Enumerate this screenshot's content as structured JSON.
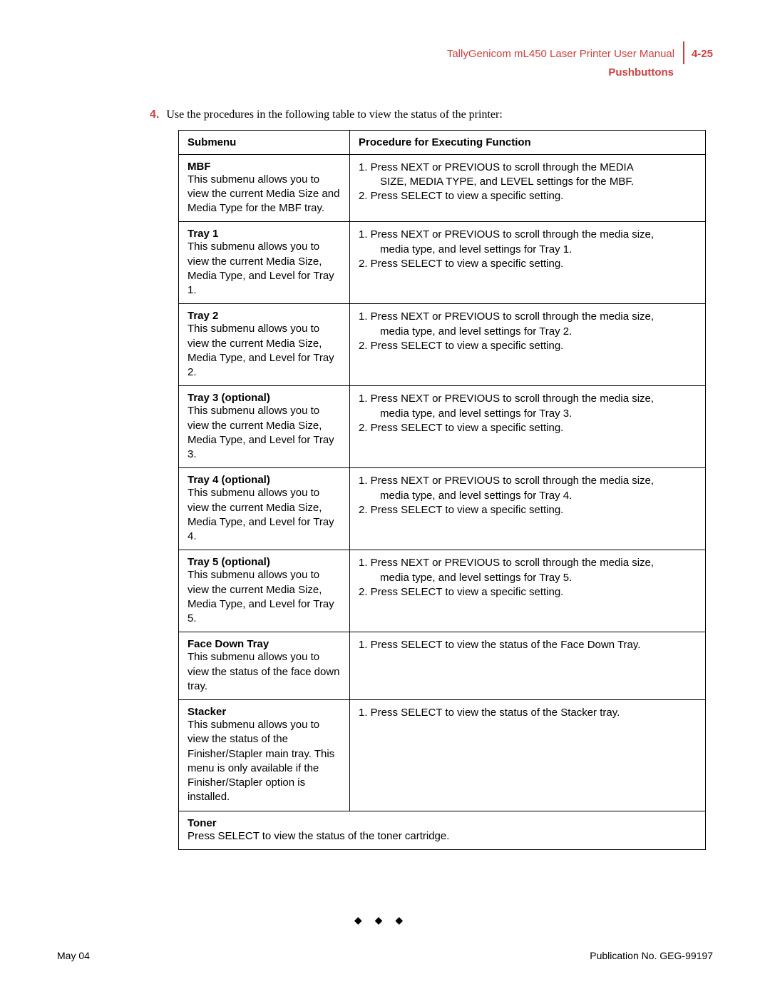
{
  "header": {
    "manual_title": "TallyGenicom mL450 Laser Printer User Manual",
    "page_number": "4-25",
    "section": "Pushbuttons"
  },
  "instruction": {
    "number": "4.",
    "text": "Use the procedures in the following table to view the status of the printer:"
  },
  "table": {
    "headers": {
      "col1": "Submenu",
      "col2": "Procedure for Executing Function"
    },
    "rows": [
      {
        "title": "MBF",
        "desc": "This submenu allows you to view the current Media Size and Media Type for the MBF tray.",
        "proc": [
          "1. Press NEXT or PREVIOUS to scroll through the MEDIA",
          "    SIZE, MEDIA TYPE, and LEVEL settings for the MBF.",
          "2. Press SELECT to view a specific setting."
        ]
      },
      {
        "title": "Tray 1",
        "desc": "This submenu allows you to view the current Media Size, Media Type, and Level for Tray 1.",
        "proc": [
          "1. Press NEXT or PREVIOUS to scroll through the media size,",
          "    media type, and level settings for Tray 1.",
          "2. Press SELECT to view a specific setting."
        ]
      },
      {
        "title": "Tray 2",
        "desc": "This submenu allows you to view the current Media Size, Media Type, and Level for Tray 2.",
        "proc": [
          "1. Press NEXT or PREVIOUS to scroll through the media size,",
          "    media type, and level settings for Tray 2.",
          "2. Press SELECT to view a specific setting."
        ]
      },
      {
        "title": "Tray 3 (optional)",
        "desc": "This submenu allows you to view the current Media Size, Media Type, and Level for Tray 3.",
        "proc": [
          "1. Press NEXT or PREVIOUS to scroll through the media size,",
          "    media type, and level settings for Tray 3.",
          "2. Press SELECT to view a specific setting."
        ]
      },
      {
        "title": "Tray 4 (optional)",
        "desc": "This submenu allows you to view the current Media Size, Media Type, and Level for Tray 4.",
        "proc": [
          "1. Press NEXT or PREVIOUS to scroll through the media size,",
          "    media type, and level settings for Tray 4.",
          "2. Press SELECT to view a specific setting."
        ]
      },
      {
        "title": "Tray 5 (optional)",
        "desc": "This submenu allows you to view the current Media Size, Media Type, and Level for Tray 5.",
        "proc": [
          "1. Press NEXT or PREVIOUS to scroll through the media size,",
          "    media type, and level settings for Tray 5.",
          "2. Press SELECT to view a specific setting."
        ]
      },
      {
        "title": "Face Down Tray",
        "desc": "This submenu allows you to view the status of the face down tray.",
        "proc": [
          "1. Press SELECT to view the status of the Face Down Tray."
        ]
      },
      {
        "title": "Stacker",
        "desc": "This submenu allows you to view the status of the Finisher/Stapler main tray. This menu is only available if the Finisher/Stapler option is installed.",
        "proc": [
          "1. Press SELECT to view the status of the Stacker tray."
        ]
      }
    ],
    "full_row": {
      "title": "Toner",
      "desc": "Press SELECT to view the status of the toner cartridge."
    }
  },
  "divider": "◆   ◆   ◆",
  "footer": {
    "left": "May 04",
    "right": "Publication No. GEG-99197"
  }
}
